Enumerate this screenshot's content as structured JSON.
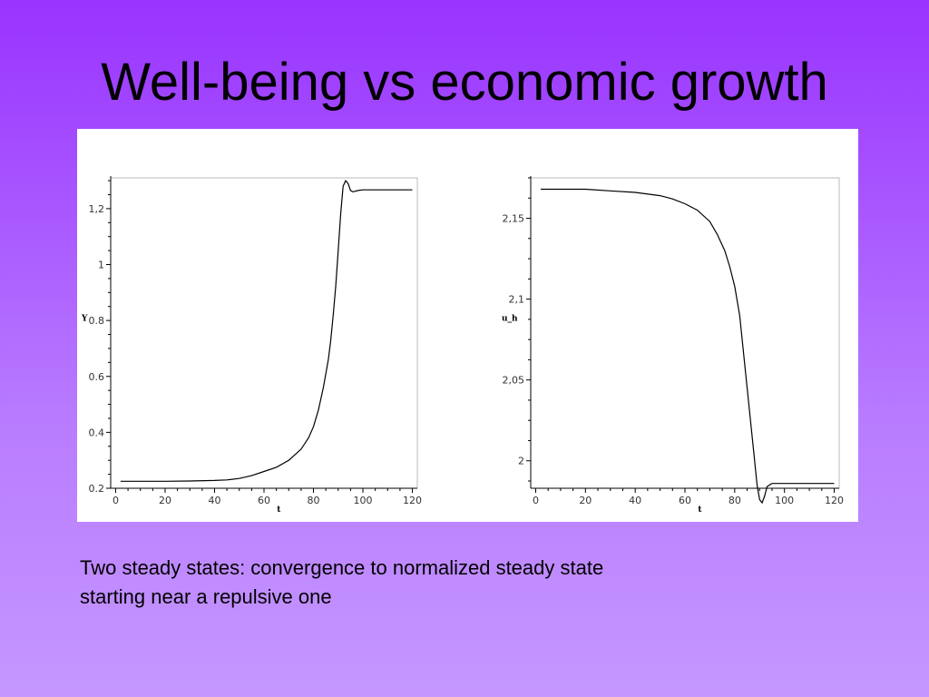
{
  "slide": {
    "title": "Well-being vs economic growth",
    "caption": "Two steady states: convergence to normalized steady state starting near a repulsive one"
  },
  "chart_data": [
    {
      "type": "line",
      "title": "",
      "xlabel": "t",
      "ylabel": "Y",
      "xlim": [
        -2,
        122
      ],
      "ylim": [
        0.2,
        1.31
      ],
      "x_ticks": [
        0,
        20,
        40,
        60,
        80,
        100,
        120
      ],
      "y_ticks": [
        0.2,
        0.4,
        0.6,
        0.8,
        1,
        1.2
      ],
      "x_tick_labels": [
        "0",
        "20",
        "40",
        "60",
        "80",
        "100",
        "120"
      ],
      "y_tick_labels": [
        "0.2",
        "0.4",
        "0.6",
        "0.8",
        "1",
        "1,2"
      ],
      "grid": false,
      "series": [
        {
          "x": [
            2,
            10,
            20,
            30,
            40,
            45,
            50,
            55,
            60,
            65,
            70,
            75,
            78,
            80,
            82,
            84,
            86,
            87,
            88,
            89,
            90,
            91,
            92,
            93,
            94,
            95,
            96,
            98,
            100,
            105,
            110,
            115,
            120
          ],
          "y": [
            0.225,
            0.225,
            0.225,
            0.226,
            0.228,
            0.23,
            0.235,
            0.245,
            0.26,
            0.275,
            0.3,
            0.34,
            0.38,
            0.42,
            0.48,
            0.56,
            0.66,
            0.73,
            0.82,
            0.92,
            1.05,
            1.18,
            1.28,
            1.3,
            1.29,
            1.265,
            1.26,
            1.265,
            1.267,
            1.267,
            1.267,
            1.267,
            1.267
          ]
        }
      ]
    },
    {
      "type": "line",
      "title": "",
      "xlabel": "t",
      "ylabel": "u_h",
      "xlim": [
        -2,
        122
      ],
      "ylim": [
        1.983,
        2.175
      ],
      "x_ticks": [
        0,
        20,
        40,
        60,
        80,
        100,
        120
      ],
      "y_ticks": [
        2,
        2.05,
        2.1,
        2.15
      ],
      "x_tick_labels": [
        "0",
        "20",
        "40",
        "60",
        "80",
        "100",
        "120"
      ],
      "y_tick_labels": [
        "2",
        "2,05",
        "2,1",
        "2,15"
      ],
      "grid": false,
      "series": [
        {
          "x": [
            2,
            10,
            20,
            30,
            40,
            50,
            55,
            60,
            65,
            70,
            73,
            76,
            78,
            80,
            82,
            84,
            86,
            88,
            89,
            90,
            91,
            92,
            93,
            94,
            95,
            97,
            100,
            105,
            110,
            115,
            120
          ],
          "y": [
            2.168,
            2.168,
            2.168,
            2.167,
            2.166,
            2.164,
            2.162,
            2.159,
            2.155,
            2.148,
            2.14,
            2.13,
            2.12,
            2.108,
            2.09,
            2.06,
            2.03,
            2.0,
            1.985,
            1.976,
            1.974,
            1.978,
            1.984,
            1.985,
            1.986,
            1.986,
            1.986,
            1.986,
            1.986,
            1.986,
            1.986
          ]
        }
      ]
    }
  ]
}
